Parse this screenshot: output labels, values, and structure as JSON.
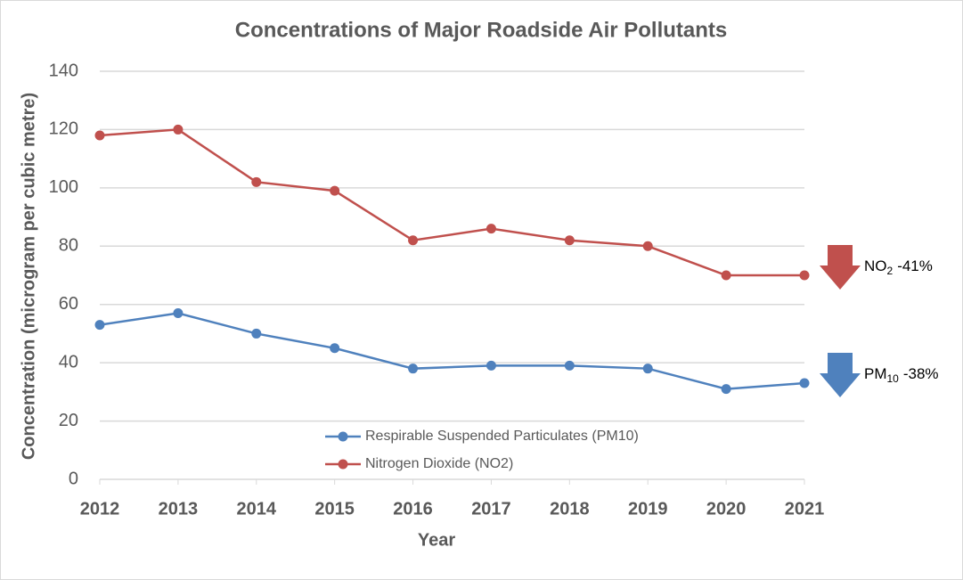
{
  "chart_data": {
    "type": "line",
    "title": "Concentrations of Major Roadside Air Pollutants",
    "x_label": "Year",
    "y_label": "Concentration (microgram per cubic metre)",
    "categories": [
      "2012",
      "2013",
      "2014",
      "2015",
      "2016",
      "2017",
      "2018",
      "2019",
      "2020",
      "2021"
    ],
    "series": [
      {
        "name": "Respirable Suspended Particulates (PM10)",
        "color": "#4f81bd",
        "values": [
          53,
          57,
          50,
          45,
          38,
          39,
          39,
          38,
          31,
          33
        ]
      },
      {
        "name": "Nitrogen Dioxide (NO2)",
        "color": "#c0504d",
        "values": [
          118,
          120,
          102,
          99,
          82,
          86,
          82,
          80,
          70,
          70
        ]
      }
    ],
    "ylim": [
      0,
      140
    ],
    "yticks": [
      0,
      20,
      40,
      60,
      80,
      100,
      120,
      140
    ],
    "grid": true,
    "legend": "lower center",
    "annotations": [
      {
        "label": "NO",
        "subscript": "2",
        "text": "-41%",
        "color": "#c0504d",
        "series": 1
      },
      {
        "label": "PM",
        "subscript": "10",
        "text": "-38%",
        "color": "#4f81bd",
        "series": 0
      }
    ]
  }
}
